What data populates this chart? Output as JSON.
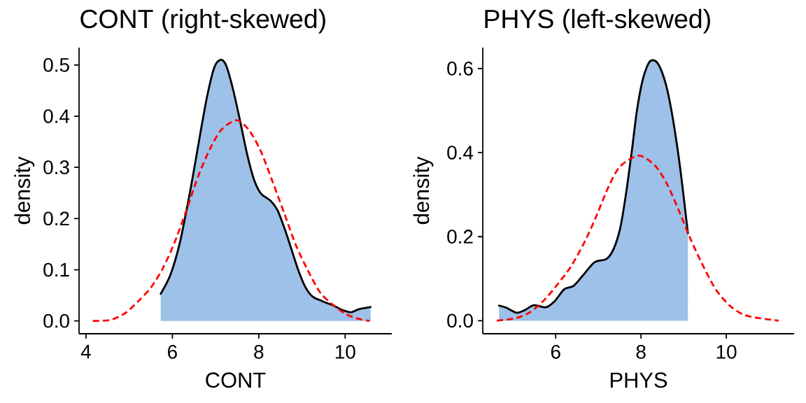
{
  "chart_data": [
    {
      "type": "area",
      "title": "CONT (right-skewed)",
      "xlabel": "CONT",
      "ylabel": "density",
      "xlim": [
        3.84,
        11.08
      ],
      "ylim": [
        -0.025,
        0.534
      ],
      "xticks": [
        4,
        6,
        8,
        10
      ],
      "yticks": [
        {
          "value": 0,
          "label": "0.0"
        },
        0.1,
        0.2,
        0.3,
        0.4,
        0.5
      ],
      "series": [
        {
          "color": "#9dc1e8",
          "x": [
            5.73,
            5.95,
            6.16,
            6.33,
            6.49,
            6.65,
            6.81,
            6.97,
            7.11,
            7.24,
            7.4,
            7.57,
            7.73,
            7.89,
            8.05,
            8.27,
            8.43,
            8.6,
            8.76,
            8.92,
            9.08,
            9.24,
            9.46,
            9.73,
            9.95,
            10.14,
            10.32,
            10.59
          ],
          "values": [
            0.053,
            0.089,
            0.148,
            0.217,
            0.29,
            0.368,
            0.441,
            0.495,
            0.51,
            0.5,
            0.454,
            0.39,
            0.326,
            0.276,
            0.249,
            0.235,
            0.217,
            0.18,
            0.139,
            0.098,
            0.066,
            0.048,
            0.039,
            0.03,
            0.021,
            0.017,
            0.023,
            0.027
          ]
        },
        {
          "type": "line",
          "color": "#ff0000",
          "line_style": "dashed",
          "x": [
            4.16,
            4.57,
            4.92,
            5.24,
            5.51,
            5.78,
            6.05,
            6.33,
            6.59,
            6.87,
            7.14,
            7.49,
            7.78,
            8.05,
            8.32,
            8.6,
            8.86,
            9.14,
            9.41,
            9.68,
            10.0,
            10.27,
            10.57
          ],
          "values": [
            0.0,
            0.002,
            0.016,
            0.041,
            0.066,
            0.103,
            0.153,
            0.217,
            0.281,
            0.336,
            0.374,
            0.392,
            0.372,
            0.331,
            0.272,
            0.208,
            0.148,
            0.098,
            0.057,
            0.034,
            0.014,
            0.005,
            0.0
          ]
        }
      ]
    },
    {
      "type": "area",
      "title": "PHYS (left-skewed)",
      "xlabel": "PHYS",
      "ylabel": "density",
      "xlim": [
        4.29,
        11.59
      ],
      "ylim": [
        -0.031,
        0.65
      ],
      "xticks": [
        6,
        8,
        10
      ],
      "yticks": [
        {
          "value": 0,
          "label": "0.0"
        },
        0.2,
        0.4,
        0.6
      ],
      "series": [
        {
          "color": "#9dc1e8",
          "x": [
            4.67,
            4.84,
            5.08,
            5.27,
            5.49,
            5.77,
            5.98,
            6.2,
            6.42,
            6.64,
            6.91,
            7.19,
            7.35,
            7.51,
            7.65,
            7.79,
            7.9,
            8.03,
            8.17,
            8.28,
            8.42,
            8.58,
            8.72,
            8.85,
            8.96,
            9.1
          ],
          "values": [
            0.036,
            0.031,
            0.019,
            0.025,
            0.037,
            0.032,
            0.047,
            0.075,
            0.083,
            0.108,
            0.139,
            0.147,
            0.169,
            0.219,
            0.303,
            0.408,
            0.497,
            0.569,
            0.611,
            0.62,
            0.608,
            0.564,
            0.497,
            0.414,
            0.33,
            0.208
          ]
        },
        {
          "type": "line",
          "color": "#ff0000",
          "line_style": "dashed",
          "x": [
            4.62,
            5.06,
            5.38,
            5.71,
            6.04,
            6.37,
            6.7,
            6.97,
            7.24,
            7.51,
            7.95,
            8.33,
            8.61,
            8.88,
            9.15,
            9.43,
            9.75,
            10.08,
            10.41,
            10.79,
            11.23
          ],
          "values": [
            0.0,
            0.006,
            0.019,
            0.047,
            0.086,
            0.131,
            0.192,
            0.253,
            0.319,
            0.367,
            0.393,
            0.369,
            0.325,
            0.264,
            0.197,
            0.136,
            0.075,
            0.036,
            0.014,
            0.006,
            0.0
          ]
        }
      ]
    }
  ]
}
